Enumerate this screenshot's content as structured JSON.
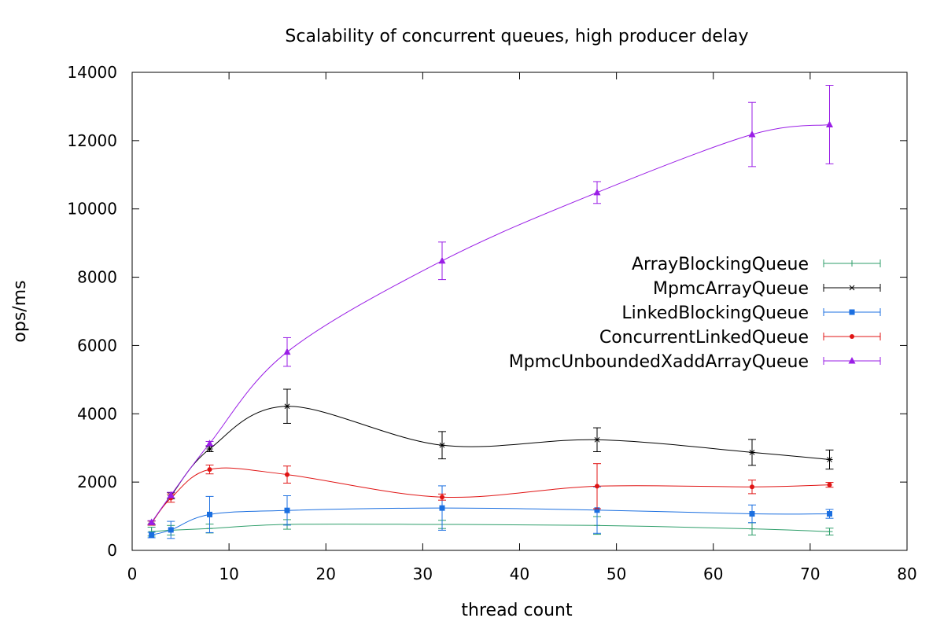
{
  "chart_data": {
    "type": "line",
    "title": "Scalability of concurrent queues, high producer delay",
    "xlabel": "thread count",
    "ylabel": "ops/ms",
    "xlim": [
      0,
      80
    ],
    "ylim": [
      0,
      14000
    ],
    "x_ticks": [
      "0",
      "10",
      "20",
      "30",
      "40",
      "50",
      "60",
      "70",
      "80"
    ],
    "y_ticks": [
      "0",
      "2000",
      "4000",
      "6000",
      "8000",
      "10000",
      "12000",
      "14000"
    ],
    "grid": false,
    "legend_position": "right",
    "x": [
      2,
      4,
      8,
      16,
      32,
      48,
      64,
      72
    ],
    "series": [
      {
        "name": "ArrayBlockingQueue",
        "color": "#2e9e6a",
        "marker": "plus",
        "values": [
          550,
          590,
          640,
          760,
          760,
          730,
          630,
          550
        ],
        "err": [
          130,
          140,
          130,
          140,
          120,
          260,
          180,
          100
        ]
      },
      {
        "name": "MpmcArrayQueue",
        "color": "#000000",
        "marker": "asterisk",
        "values": [
          800,
          1600,
          2970,
          4220,
          3080,
          3240,
          2870,
          2660
        ],
        "err": [
          60,
          90,
          80,
          500,
          400,
          350,
          380,
          280
        ]
      },
      {
        "name": "LinkedBlockingQueue",
        "color": "#1b6fe0",
        "marker": "square",
        "values": [
          450,
          600,
          1050,
          1170,
          1240,
          1180,
          1070,
          1070
        ],
        "err": [
          80,
          250,
          530,
          430,
          650,
          680,
          260,
          130
        ]
      },
      {
        "name": "ConcurrentLinkedQueue",
        "color": "#e01414",
        "marker": "circle",
        "values": [
          800,
          1530,
          2370,
          2220,
          1560,
          1880,
          1860,
          1920
        ],
        "err": [
          60,
          120,
          130,
          250,
          90,
          660,
          200,
          70
        ]
      },
      {
        "name": "MpmcUnboundedXaddArrayQueue",
        "color": "#9a1ee6",
        "marker": "triangle",
        "values": [
          820,
          1620,
          3130,
          5810,
          8480,
          10480,
          12180,
          12470
        ],
        "err": [
          50,
          80,
          60,
          420,
          550,
          320,
          940,
          1150
        ]
      }
    ]
  }
}
